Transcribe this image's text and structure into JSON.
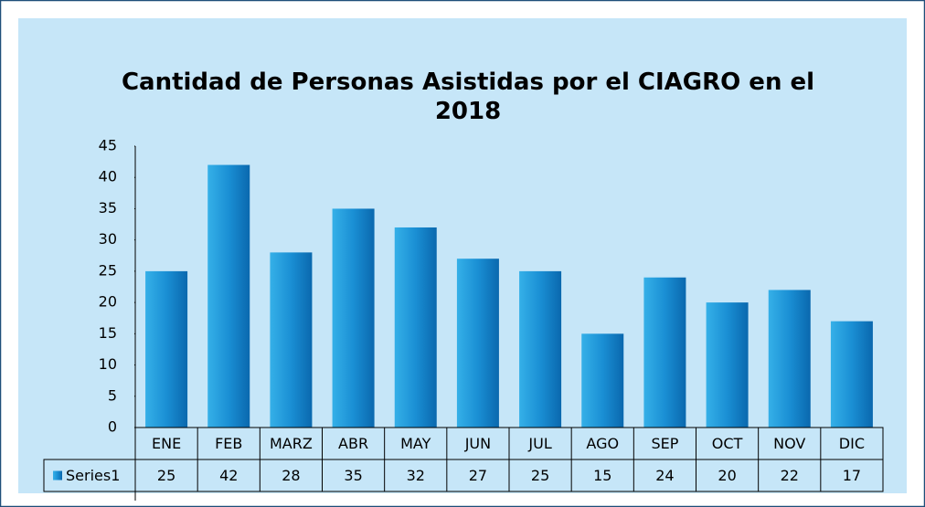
{
  "chart_data": {
    "type": "bar",
    "title": "Cantidad de Personas Asistidas por el CIAGRO en el 2018",
    "categories": [
      "ENE",
      "FEB",
      "MARZ",
      "ABR",
      "MAY",
      "JUN",
      "JUL",
      "AGO",
      "SEP",
      "OCT",
      "NOV",
      "DIC"
    ],
    "series": [
      {
        "name": "Series1",
        "color": "#1589cf",
        "values": [
          25,
          42,
          28,
          35,
          32,
          27,
          25,
          15,
          24,
          20,
          22,
          17
        ]
      }
    ],
    "ylim": [
      0,
      45
    ],
    "yticks": [
      0,
      5,
      10,
      15,
      20,
      25,
      30,
      35,
      40,
      45
    ],
    "grid": false,
    "data_table": true
  }
}
